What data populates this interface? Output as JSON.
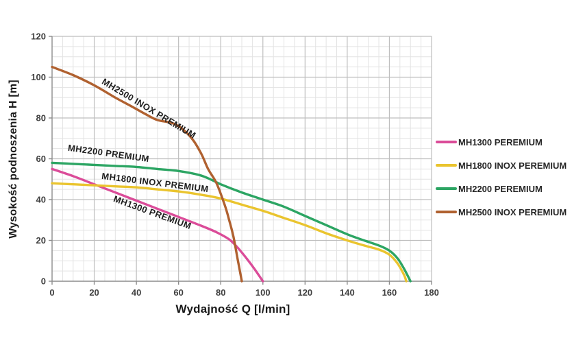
{
  "chart_data": {
    "type": "line",
    "title": "",
    "xlabel": "Wydajność Q [l/min]",
    "ylabel": "Wysokość podnoszenia H [m]",
    "xlim": [
      0,
      180
    ],
    "ylim": [
      0,
      120
    ],
    "x_ticks": [
      0,
      20,
      40,
      60,
      80,
      100,
      120,
      140,
      160,
      180
    ],
    "y_ticks": [
      0,
      20,
      40,
      60,
      80,
      100,
      120
    ],
    "minor_grid_step": 5,
    "grid": "major-and-minor",
    "legend_position": "right",
    "series": [
      {
        "name": "MH1300 PREMIUM",
        "legend_label": "MH1300 PEREMIUM",
        "color": "#DB4C99",
        "points": [
          [
            0,
            55
          ],
          [
            10,
            51.5
          ],
          [
            20,
            47.5
          ],
          [
            30,
            43.5
          ],
          [
            40,
            39.5
          ],
          [
            50,
            35.5
          ],
          [
            60,
            31.5
          ],
          [
            70,
            27.5
          ],
          [
            78,
            24
          ],
          [
            84,
            20.5
          ],
          [
            88,
            16.5
          ],
          [
            92,
            11.5
          ],
          [
            96,
            6
          ],
          [
            100,
            0
          ]
        ]
      },
      {
        "name": "MH1800 INOX PREMIUM",
        "legend_label": "MH1800 INOX PEREMIUM",
        "color": "#EAC42E",
        "points": [
          [
            0,
            48
          ],
          [
            10,
            47.5
          ],
          [
            20,
            47
          ],
          [
            30,
            46.5
          ],
          [
            40,
            46
          ],
          [
            50,
            45
          ],
          [
            60,
            44
          ],
          [
            70,
            42.5
          ],
          [
            80,
            40.5
          ],
          [
            90,
            37.5
          ],
          [
            100,
            34.5
          ],
          [
            110,
            31
          ],
          [
            120,
            27.5
          ],
          [
            130,
            23.5
          ],
          [
            140,
            20
          ],
          [
            148,
            17.5
          ],
          [
            155,
            15.5
          ],
          [
            160,
            13
          ],
          [
            164,
            8.5
          ],
          [
            167,
            3
          ],
          [
            168,
            0
          ]
        ]
      },
      {
        "name": "MH2200 PREMIUM",
        "legend_label": "MH2200 PEREMIUM",
        "color": "#2CA563",
        "points": [
          [
            0,
            58
          ],
          [
            10,
            57.5
          ],
          [
            20,
            57
          ],
          [
            30,
            56.5
          ],
          [
            40,
            56
          ],
          [
            50,
            55
          ],
          [
            60,
            54
          ],
          [
            70,
            52
          ],
          [
            76,
            49.5
          ],
          [
            80,
            47.5
          ],
          [
            90,
            43.5
          ],
          [
            100,
            40
          ],
          [
            110,
            36.5
          ],
          [
            120,
            32
          ],
          [
            130,
            27.5
          ],
          [
            140,
            23
          ],
          [
            148,
            20
          ],
          [
            155,
            17.5
          ],
          [
            160,
            15
          ],
          [
            164,
            11
          ],
          [
            167,
            6
          ],
          [
            170,
            0
          ]
        ]
      },
      {
        "name": "MH2500 INOX PREMIUM",
        "legend_label": "MH2500 INOX PEREMIUM",
        "color": "#B06130",
        "points": [
          [
            0,
            105
          ],
          [
            10,
            101
          ],
          [
            20,
            96
          ],
          [
            30,
            90
          ],
          [
            38,
            85.5
          ],
          [
            45,
            81.5
          ],
          [
            50,
            79
          ],
          [
            57,
            77.5
          ],
          [
            62,
            74.5
          ],
          [
            67,
            69
          ],
          [
            71,
            62
          ],
          [
            74,
            55
          ],
          [
            78,
            48
          ],
          [
            82,
            37
          ],
          [
            84,
            30
          ],
          [
            86,
            22
          ],
          [
            88,
            11
          ],
          [
            90,
            0
          ]
        ]
      }
    ],
    "curve_labels": [
      {
        "text": "MH2500 INOX PREMIUM",
        "q": 45.2,
        "h": 83.4,
        "rotation": 31
      },
      {
        "text": "MH2200 PREMIUM",
        "q": 26.6,
        "h": 61.2,
        "rotation": 8
      },
      {
        "text": "MH1800 INOX PREMIUM",
        "q": 48.7,
        "h": 46.9,
        "rotation": 7
      },
      {
        "text": "MH1300 PREMIUM",
        "q": 47.1,
        "h": 32.3,
        "rotation": 20
      }
    ],
    "colors": {
      "minor_grid": "#e3e3e3",
      "major_grid": "#bebebe",
      "axis_line": "#8c8c8c",
      "background": "#ffffff"
    }
  }
}
